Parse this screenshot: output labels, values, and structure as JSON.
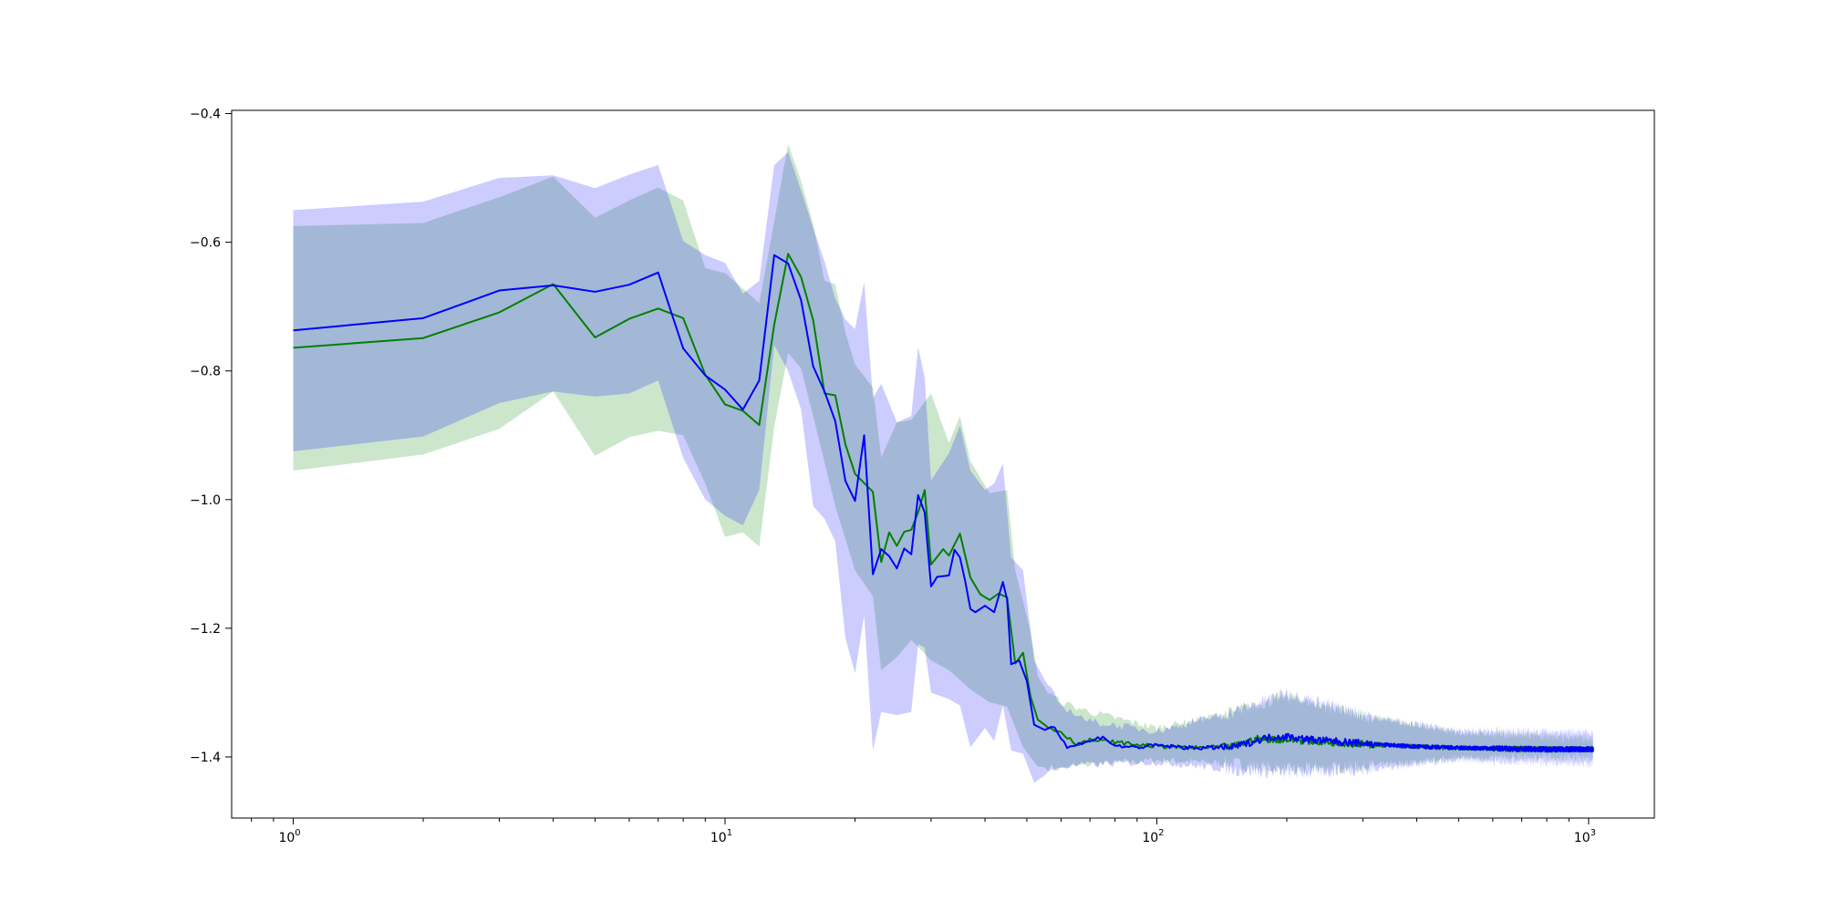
{
  "chart_data": {
    "type": "line",
    "title": "",
    "xlabel": "",
    "ylabel": "",
    "xscale": "log",
    "xlim": [
      0.72,
      1420
    ],
    "ylim": [
      -1.495,
      -0.395
    ],
    "grid": false,
    "legend": "none",
    "x_ticks": [
      {
        "base": "10",
        "exp": "0",
        "value": 1
      },
      {
        "base": "10",
        "exp": "1",
        "value": 10
      },
      {
        "base": "10",
        "exp": "2",
        "value": 100
      },
      {
        "base": "10",
        "exp": "3",
        "value": 1000
      }
    ],
    "y_ticks": [
      {
        "label": "−0.4",
        "value": -0.4
      },
      {
        "label": "−0.6",
        "value": -0.6
      },
      {
        "label": "−0.8",
        "value": -0.8
      },
      {
        "label": "−1.0",
        "value": -1.0
      },
      {
        "label": "−1.2",
        "value": -1.2
      },
      {
        "label": "−1.4",
        "value": -1.4
      }
    ],
    "series": [
      {
        "color": "#008000",
        "band_color": "#008000",
        "band_opacity": 0.2,
        "points": [
          [
            1,
            -0.764
          ],
          [
            2,
            -0.749
          ],
          [
            3,
            -0.709
          ],
          [
            4,
            -0.665
          ],
          [
            5,
            -0.748
          ],
          [
            6,
            -0.719
          ],
          [
            7,
            -0.703
          ],
          [
            8,
            -0.718
          ],
          [
            9,
            -0.806
          ],
          [
            10,
            -0.852
          ],
          [
            11,
            -0.862
          ],
          [
            12,
            -0.884
          ],
          [
            13,
            -0.728
          ],
          [
            14,
            -0.618
          ],
          [
            15,
            -0.654
          ],
          [
            16,
            -0.721
          ],
          [
            17,
            -0.835
          ],
          [
            18,
            -0.838
          ],
          [
            19,
            -0.914
          ],
          [
            20,
            -0.96
          ],
          [
            22,
            -0.988
          ],
          [
            23,
            -1.097
          ],
          [
            24,
            -1.051
          ],
          [
            25,
            -1.072
          ],
          [
            26,
            -1.05
          ],
          [
            27,
            -1.047
          ],
          [
            28,
            -1.02
          ],
          [
            29,
            -0.985
          ],
          [
            30,
            -1.101
          ],
          [
            32,
            -1.077
          ],
          [
            33,
            -1.087
          ],
          [
            35,
            -1.053
          ],
          [
            37,
            -1.121
          ],
          [
            39,
            -1.147
          ],
          [
            41,
            -1.156
          ],
          [
            43,
            -1.146
          ],
          [
            45,
            -1.152
          ],
          [
            47,
            -1.255
          ],
          [
            49,
            -1.238
          ],
          [
            51,
            -1.306
          ],
          [
            53,
            -1.342
          ],
          [
            56,
            -1.354
          ],
          [
            60,
            -1.361
          ],
          [
            65,
            -1.38
          ],
          [
            70,
            -1.374
          ],
          [
            80,
            -1.377
          ],
          [
            90,
            -1.381
          ],
          [
            100,
            -1.383
          ],
          [
            120,
            -1.386
          ],
          [
            150,
            -1.384
          ],
          [
            170,
            -1.372
          ],
          [
            200,
            -1.373
          ],
          [
            250,
            -1.377
          ],
          [
            300,
            -1.38
          ],
          [
            400,
            -1.384
          ],
          [
            500,
            -1.386
          ],
          [
            600,
            -1.387
          ],
          [
            800,
            -1.388
          ],
          [
            1024,
            -1.388
          ]
        ],
        "lower": [
          [
            1,
            -0.955
          ],
          [
            2,
            -0.93
          ],
          [
            3,
            -0.89
          ],
          [
            4,
            -0.832
          ],
          [
            5,
            -0.932
          ],
          [
            6,
            -0.903
          ],
          [
            7,
            -0.893
          ],
          [
            8,
            -0.9
          ],
          [
            9,
            -0.975
          ],
          [
            10,
            -1.058
          ],
          [
            11,
            -1.051
          ],
          [
            12,
            -1.073
          ],
          [
            13,
            -0.887
          ],
          [
            14,
            -0.772
          ],
          [
            15,
            -0.796
          ],
          [
            16,
            -0.87
          ],
          [
            18,
            -1.01
          ],
          [
            20,
            -1.11
          ],
          [
            22,
            -1.15
          ],
          [
            23,
            -1.265
          ],
          [
            25,
            -1.245
          ],
          [
            27,
            -1.218
          ],
          [
            30,
            -1.25
          ],
          [
            33,
            -1.265
          ],
          [
            37,
            -1.295
          ],
          [
            41,
            -1.315
          ],
          [
            45,
            -1.322
          ],
          [
            49,
            -1.385
          ],
          [
            53,
            -1.415
          ],
          [
            60,
            -1.418
          ],
          [
            70,
            -1.412
          ],
          [
            100,
            -1.405
          ],
          [
            150,
            -1.41
          ],
          [
            200,
            -1.42
          ],
          [
            300,
            -1.415
          ],
          [
            500,
            -1.402
          ],
          [
            1024,
            -1.4
          ]
        ],
        "upper": [
          [
            1,
            -0.575
          ],
          [
            2,
            -0.57
          ],
          [
            3,
            -0.53
          ],
          [
            4,
            -0.498
          ],
          [
            5,
            -0.562
          ],
          [
            6,
            -0.535
          ],
          [
            7,
            -0.515
          ],
          [
            8,
            -0.535
          ],
          [
            9,
            -0.64
          ],
          [
            10,
            -0.648
          ],
          [
            11,
            -0.672
          ],
          [
            12,
            -0.695
          ],
          [
            13,
            -0.568
          ],
          [
            14,
            -0.447
          ],
          [
            15,
            -0.505
          ],
          [
            16,
            -0.572
          ],
          [
            17,
            -0.66
          ],
          [
            18,
            -0.665
          ],
          [
            19,
            -0.74
          ],
          [
            20,
            -0.79
          ],
          [
            22,
            -0.826
          ],
          [
            23,
            -0.935
          ],
          [
            25,
            -0.88
          ],
          [
            27,
            -0.876
          ],
          [
            30,
            -0.835
          ],
          [
            33,
            -0.912
          ],
          [
            35,
            -0.87
          ],
          [
            37,
            -0.94
          ],
          [
            41,
            -0.99
          ],
          [
            45,
            -0.985
          ],
          [
            47,
            -1.11
          ],
          [
            51,
            -1.205
          ],
          [
            53,
            -1.275
          ],
          [
            56,
            -1.3
          ],
          [
            60,
            -1.315
          ],
          [
            70,
            -1.33
          ],
          [
            100,
            -1.355
          ],
          [
            150,
            -1.33
          ],
          [
            200,
            -1.305
          ],
          [
            300,
            -1.335
          ],
          [
            500,
            -1.362
          ],
          [
            1024,
            -1.372
          ]
        ]
      },
      {
        "color": "#0000ff",
        "band_color": "#0000ff",
        "band_opacity": 0.2,
        "points": [
          [
            1,
            -0.737
          ],
          [
            2,
            -0.718
          ],
          [
            3,
            -0.675
          ],
          [
            4,
            -0.667
          ],
          [
            5,
            -0.677
          ],
          [
            6,
            -0.666
          ],
          [
            7,
            -0.647
          ],
          [
            8,
            -0.765
          ],
          [
            9,
            -0.807
          ],
          [
            10,
            -0.829
          ],
          [
            11,
            -0.86
          ],
          [
            12,
            -0.815
          ],
          [
            13,
            -0.62
          ],
          [
            14,
            -0.633
          ],
          [
            15,
            -0.69
          ],
          [
            16,
            -0.793
          ],
          [
            17,
            -0.832
          ],
          [
            18,
            -0.878
          ],
          [
            19,
            -0.971
          ],
          [
            20,
            -1.002
          ],
          [
            21,
            -0.9
          ],
          [
            22,
            -1.116
          ],
          [
            23,
            -1.077
          ],
          [
            24,
            -1.088
          ],
          [
            25,
            -1.107
          ],
          [
            26,
            -1.076
          ],
          [
            27,
            -1.085
          ],
          [
            28,
            -0.993
          ],
          [
            29,
            -1.02
          ],
          [
            30,
            -1.135
          ],
          [
            31,
            -1.12
          ],
          [
            33,
            -1.118
          ],
          [
            34,
            -1.078
          ],
          [
            35,
            -1.09
          ],
          [
            36,
            -1.127
          ],
          [
            37,
            -1.17
          ],
          [
            38,
            -1.175
          ],
          [
            40,
            -1.165
          ],
          [
            42,
            -1.175
          ],
          [
            44,
            -1.128
          ],
          [
            45,
            -1.155
          ],
          [
            46,
            -1.256
          ],
          [
            48,
            -1.25
          ],
          [
            50,
            -1.282
          ],
          [
            52,
            -1.35
          ],
          [
            55,
            -1.358
          ],
          [
            58,
            -1.352
          ],
          [
            62,
            -1.385
          ],
          [
            66,
            -1.38
          ],
          [
            70,
            -1.376
          ],
          [
            75,
            -1.368
          ],
          [
            80,
            -1.383
          ],
          [
            90,
            -1.385
          ],
          [
            100,
            -1.382
          ],
          [
            120,
            -1.386
          ],
          [
            150,
            -1.385
          ],
          [
            180,
            -1.37
          ],
          [
            200,
            -1.368
          ],
          [
            220,
            -1.372
          ],
          [
            250,
            -1.375
          ],
          [
            300,
            -1.379
          ],
          [
            400,
            -1.384
          ],
          [
            500,
            -1.386
          ],
          [
            600,
            -1.387
          ],
          [
            800,
            -1.388
          ],
          [
            1024,
            -1.388
          ]
        ],
        "lower": [
          [
            1,
            -0.925
          ],
          [
            2,
            -0.902
          ],
          [
            3,
            -0.85
          ],
          [
            4,
            -0.832
          ],
          [
            5,
            -0.84
          ],
          [
            6,
            -0.835
          ],
          [
            7,
            -0.815
          ],
          [
            8,
            -0.935
          ],
          [
            9,
            -1.0
          ],
          [
            10,
            -1.025
          ],
          [
            11,
            -1.04
          ],
          [
            12,
            -0.985
          ],
          [
            13,
            -0.76
          ],
          [
            14,
            -0.8
          ],
          [
            15,
            -0.86
          ],
          [
            16,
            -1.01
          ],
          [
            17,
            -1.03
          ],
          [
            18,
            -1.065
          ],
          [
            19,
            -1.215
          ],
          [
            20,
            -1.27
          ],
          [
            21,
            -1.18
          ],
          [
            22,
            -1.39
          ],
          [
            23,
            -1.33
          ],
          [
            25,
            -1.335
          ],
          [
            27,
            -1.33
          ],
          [
            28,
            -1.225
          ],
          [
            29,
            -1.23
          ],
          [
            30,
            -1.3
          ],
          [
            33,
            -1.31
          ],
          [
            35,
            -1.32
          ],
          [
            37,
            -1.385
          ],
          [
            40,
            -1.355
          ],
          [
            42,
            -1.375
          ],
          [
            44,
            -1.32
          ],
          [
            46,
            -1.39
          ],
          [
            49,
            -1.395
          ],
          [
            52,
            -1.44
          ],
          [
            56,
            -1.425
          ],
          [
            60,
            -1.415
          ],
          [
            70,
            -1.412
          ],
          [
            100,
            -1.408
          ],
          [
            150,
            -1.42
          ],
          [
            200,
            -1.425
          ],
          [
            300,
            -1.42
          ],
          [
            500,
            -1.405
          ],
          [
            1024,
            -1.41
          ]
        ],
        "upper": [
          [
            1,
            -0.55
          ],
          [
            2,
            -0.537
          ],
          [
            3,
            -0.5
          ],
          [
            4,
            -0.496
          ],
          [
            5,
            -0.516
          ],
          [
            6,
            -0.495
          ],
          [
            7,
            -0.48
          ],
          [
            8,
            -0.598
          ],
          [
            9,
            -0.62
          ],
          [
            10,
            -0.632
          ],
          [
            11,
            -0.68
          ],
          [
            12,
            -0.66
          ],
          [
            13,
            -0.48
          ],
          [
            14,
            -0.46
          ],
          [
            15,
            -0.52
          ],
          [
            16,
            -0.578
          ],
          [
            17,
            -0.63
          ],
          [
            18,
            -0.688
          ],
          [
            19,
            -0.72
          ],
          [
            20,
            -0.735
          ],
          [
            21,
            -0.662
          ],
          [
            22,
            -0.842
          ],
          [
            23,
            -0.82
          ],
          [
            25,
            -0.88
          ],
          [
            27,
            -0.87
          ],
          [
            28,
            -0.763
          ],
          [
            29,
            -0.81
          ],
          [
            30,
            -0.97
          ],
          [
            33,
            -0.928
          ],
          [
            35,
            -0.885
          ],
          [
            37,
            -0.955
          ],
          [
            40,
            -0.985
          ],
          [
            42,
            -0.975
          ],
          [
            44,
            -0.944
          ],
          [
            46,
            -1.09
          ],
          [
            49,
            -1.11
          ],
          [
            52,
            -1.25
          ],
          [
            56,
            -1.29
          ],
          [
            60,
            -1.32
          ],
          [
            70,
            -1.345
          ],
          [
            100,
            -1.36
          ],
          [
            150,
            -1.33
          ],
          [
            200,
            -1.3
          ],
          [
            300,
            -1.335
          ],
          [
            500,
            -1.36
          ],
          [
            1024,
            -1.362
          ]
        ]
      }
    ]
  }
}
